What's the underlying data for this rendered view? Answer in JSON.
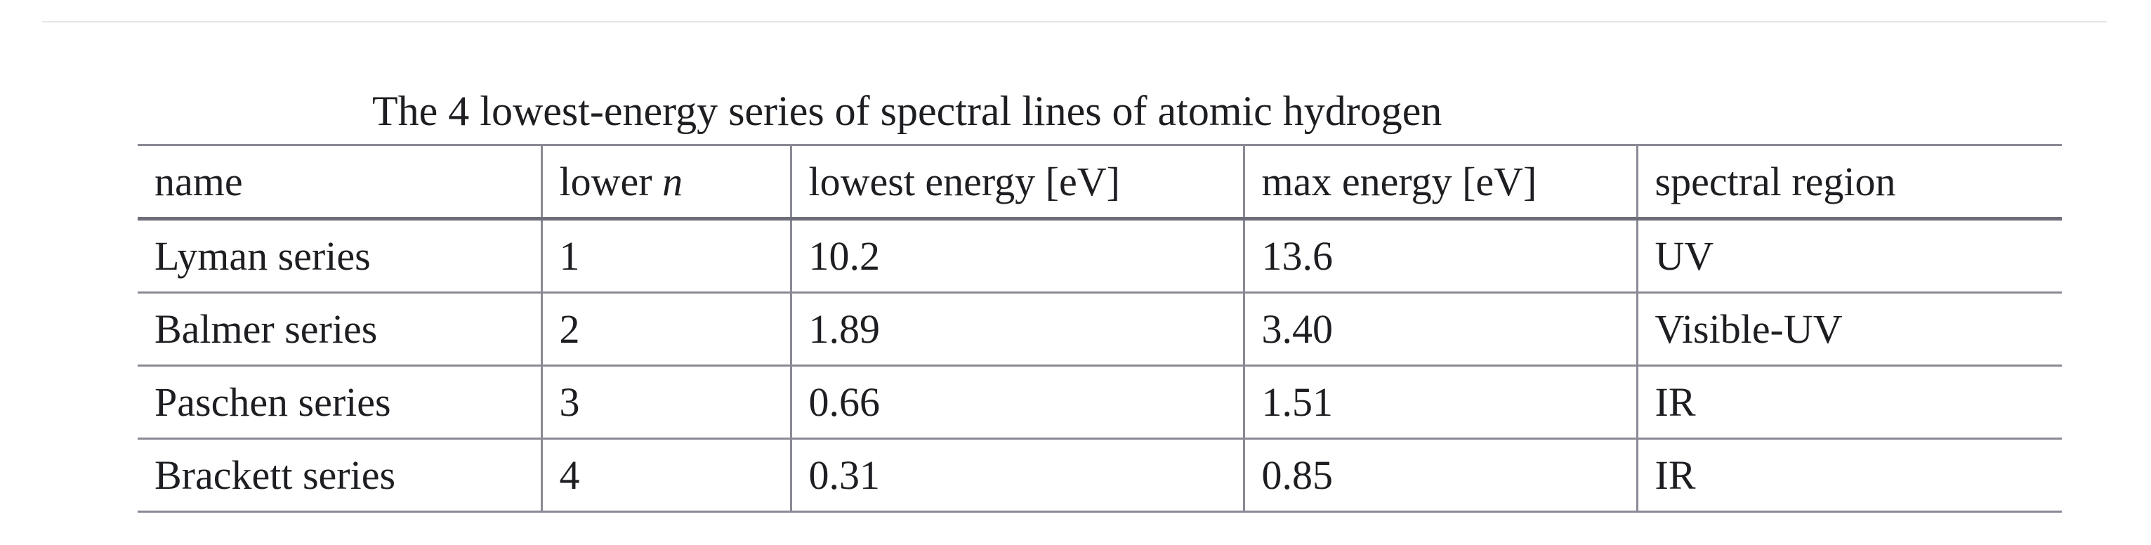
{
  "caption": "The 4 lowest-energy series of spectral lines of atomic hydrogen",
  "table": {
    "headers": {
      "name": "name",
      "lower_prefix": "lower",
      "lower_var": "n",
      "lowest_energy": "lowest energy [eV]",
      "max_energy": "max energy [eV]",
      "region": "spectral region"
    },
    "rows": [
      {
        "name": "Lyman series",
        "lower_n": "1",
        "lowest_energy": "10.2",
        "max_energy": "13.6",
        "region": "UV"
      },
      {
        "name": "Balmer series",
        "lower_n": "2",
        "lowest_energy": "1.89",
        "max_energy": "3.40",
        "region": "Visible-UV"
      },
      {
        "name": "Paschen series",
        "lower_n": "3",
        "lowest_energy": "0.66",
        "max_energy": "1.51",
        "region": "IR"
      },
      {
        "name": "Brackett series",
        "lower_n": "4",
        "lowest_energy": "0.31",
        "max_energy": "0.85",
        "region": "IR"
      }
    ]
  }
}
